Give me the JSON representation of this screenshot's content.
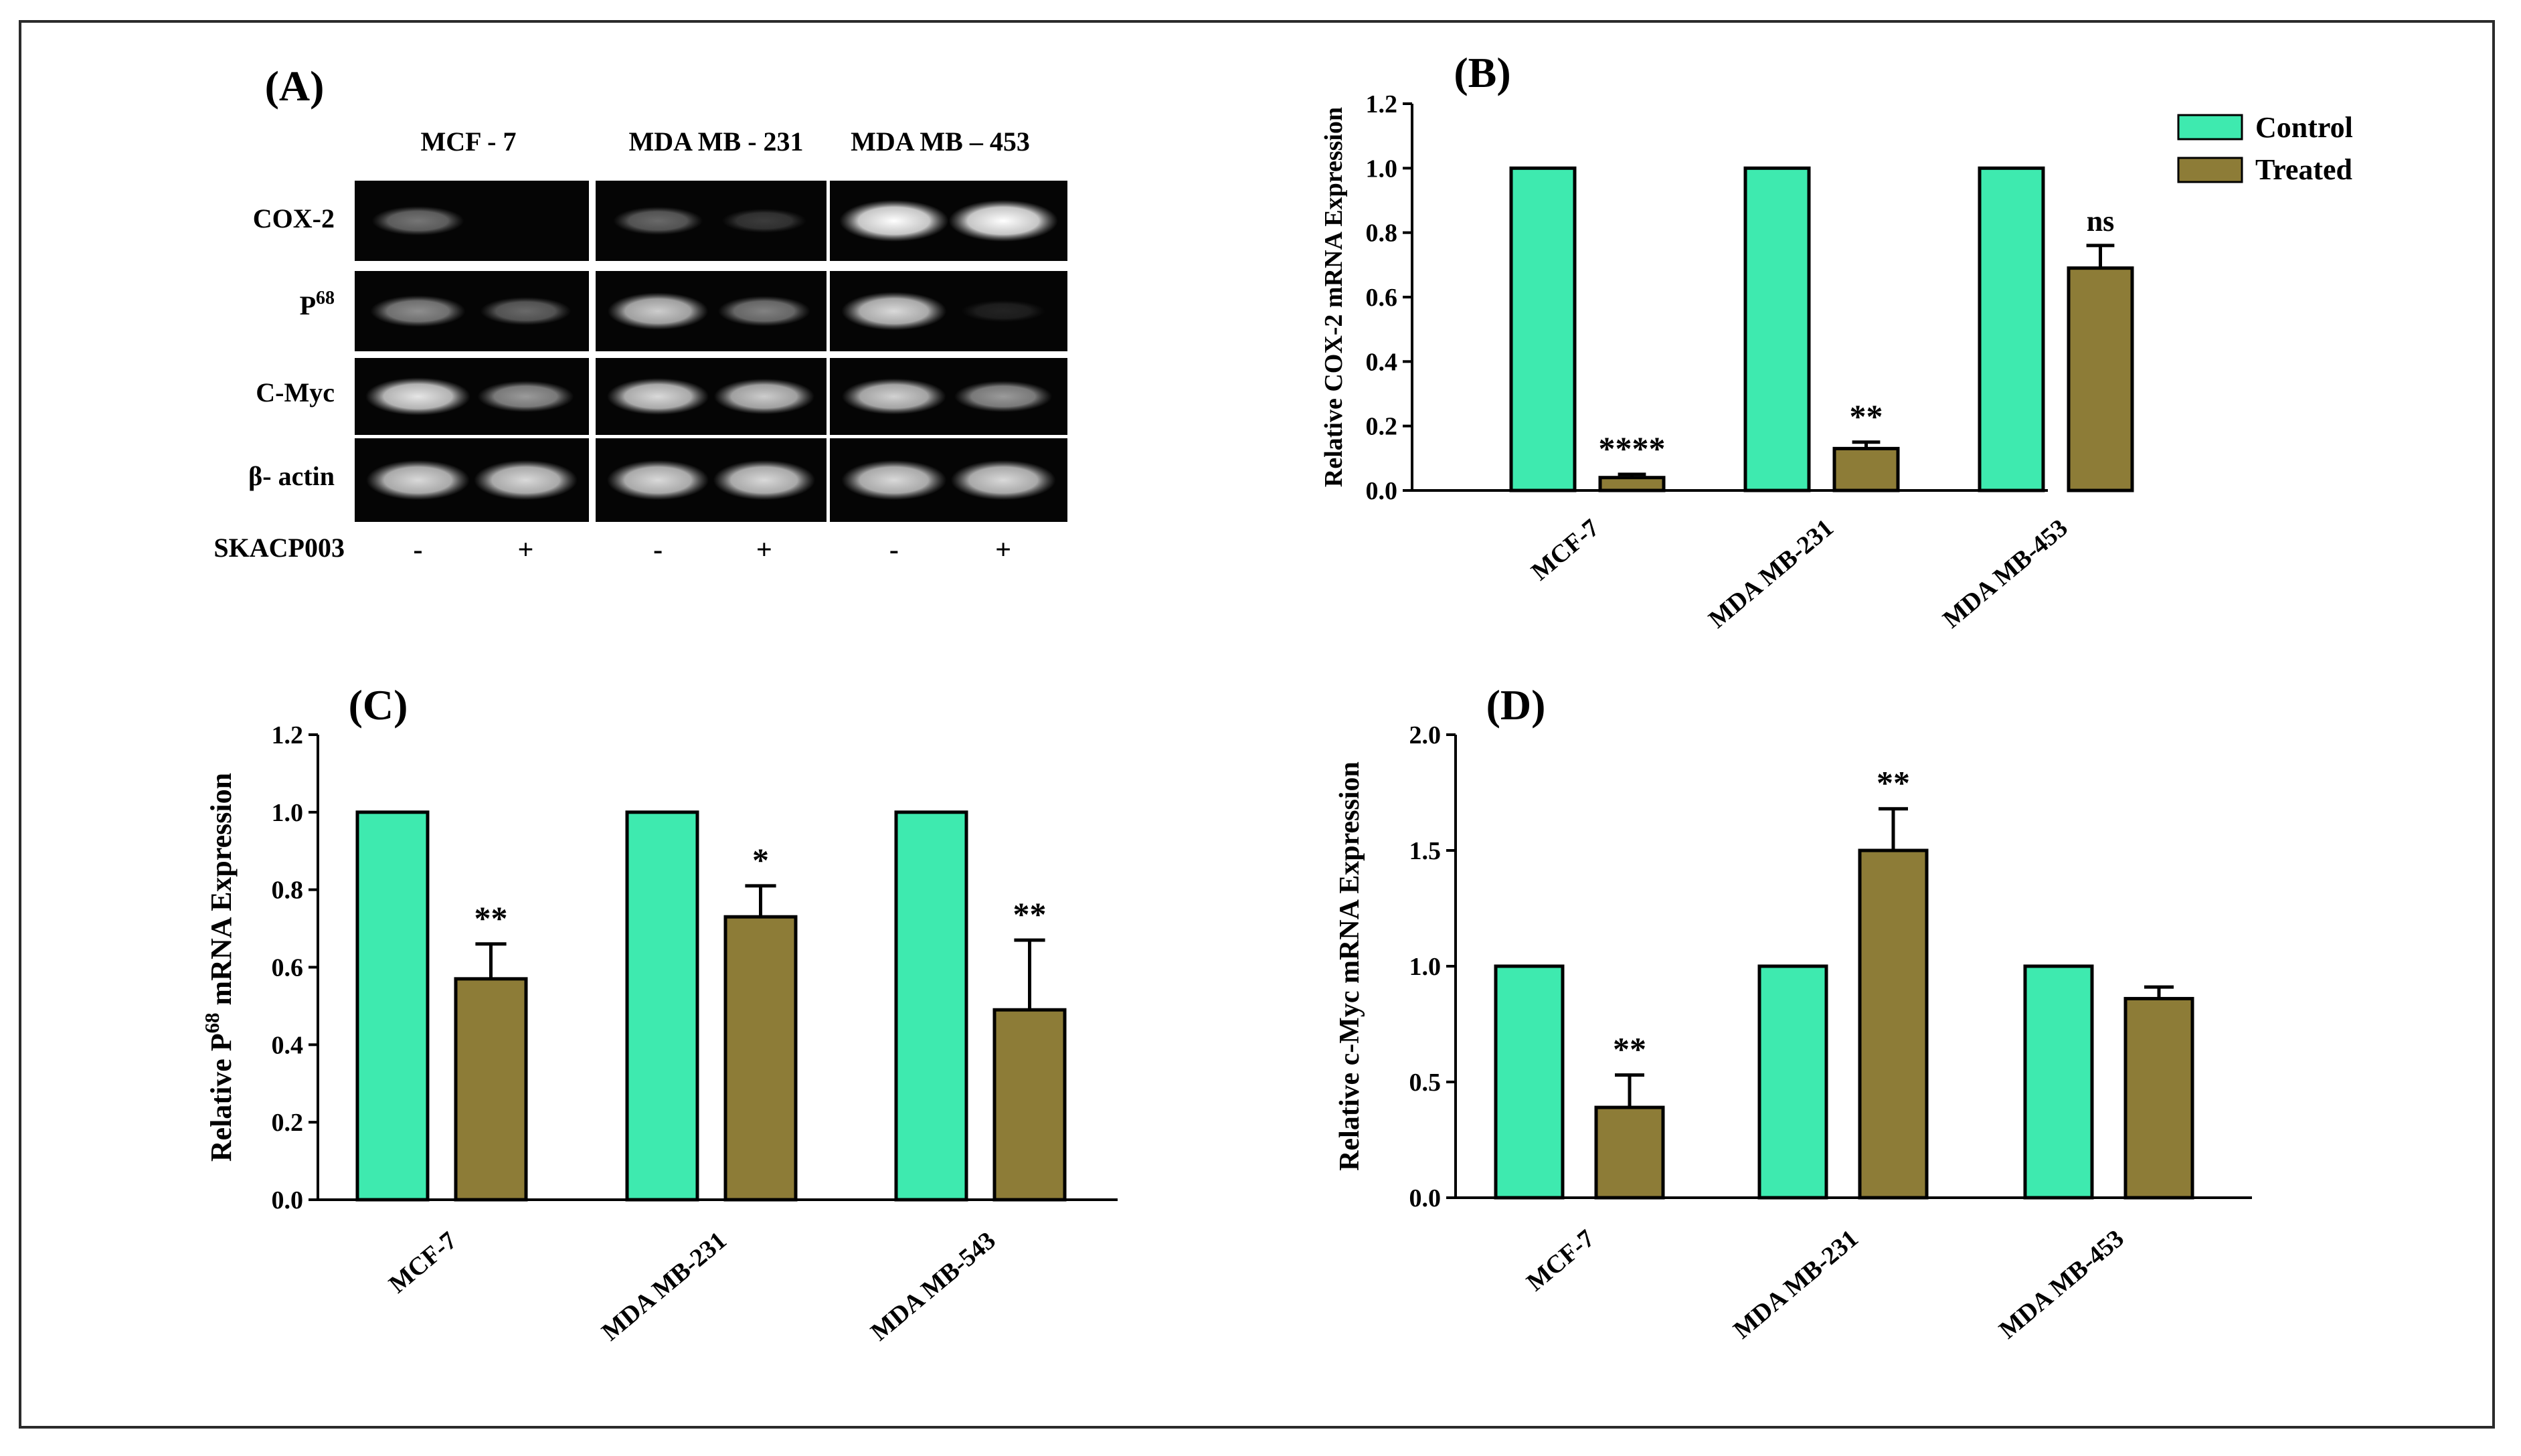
{
  "colors": {
    "control": "#3EEAAF",
    "treated": "#8D7C37",
    "band": "#ffffff",
    "gel": "#050505"
  },
  "panel_a": {
    "title": "(A)",
    "cell_lines": [
      "MCF - 7",
      "MDA MB - 231",
      "MDA MB – 453"
    ],
    "genes": [
      "COX-2",
      "P68",
      "C-Myc",
      "β- actin"
    ],
    "treatment_label": "SKACP003",
    "treatment_signs": [
      "-",
      "+",
      "-",
      "+",
      "-",
      "+"
    ],
    "band_intensity": [
      [
        0.45,
        0.0,
        0.4,
        0.22,
        1.0,
        1.0
      ],
      [
        0.55,
        0.4,
        0.8,
        0.5,
        0.85,
        0.12
      ],
      [
        0.9,
        0.6,
        0.85,
        0.8,
        0.82,
        0.6
      ],
      [
        0.85,
        0.85,
        0.85,
        0.85,
        0.85,
        0.85
      ]
    ]
  },
  "legend": {
    "control": "Control",
    "treated": "Treated"
  },
  "chart_data": [
    {
      "id": "B",
      "type": "bar",
      "title": "(B)",
      "categories": [
        "MCF-7",
        "MDA MB-231",
        "MDA MB-453"
      ],
      "series": [
        {
          "name": "Control",
          "values": [
            1.0,
            1.0,
            1.0
          ],
          "errors": [
            0,
            0,
            0
          ]
        },
        {
          "name": "Treated",
          "values": [
            0.04,
            0.13,
            0.69
          ],
          "errors": [
            0.01,
            0.02,
            0.07
          ]
        }
      ],
      "significance": [
        "****",
        "**",
        "ns"
      ],
      "ylabel": "Relative COX-2 mRNA Expression",
      "ylim": [
        0,
        1.2
      ],
      "yticks": [
        0.0,
        0.2,
        0.4,
        0.6,
        0.8,
        1.0,
        1.2
      ],
      "tick_decimals": 1,
      "legend": "top-right"
    },
    {
      "id": "C",
      "type": "bar",
      "title": "(C)",
      "categories": [
        "MCF-7",
        "MDA MB-231",
        "MDA MB-543"
      ],
      "series": [
        {
          "name": "Control",
          "values": [
            1.0,
            1.0,
            1.0
          ],
          "errors": [
            0,
            0,
            0
          ]
        },
        {
          "name": "Treated",
          "values": [
            0.57,
            0.73,
            0.49
          ],
          "errors": [
            0.09,
            0.08,
            0.18
          ]
        }
      ],
      "significance": [
        "**",
        "*",
        "**"
      ],
      "ylabel_prefix": "Relative P",
      "ylabel_sup": "68",
      "ylabel_suffix": " mRNA Expression",
      "ylim": [
        0,
        1.2
      ],
      "yticks": [
        0.0,
        0.2,
        0.4,
        0.6,
        0.8,
        1.0,
        1.2
      ],
      "tick_decimals": 1
    },
    {
      "id": "D",
      "type": "bar",
      "title": "(D)",
      "categories": [
        "MCF-7",
        "MDA MB-231",
        "MDA MB-453"
      ],
      "series": [
        {
          "name": "Control",
          "values": [
            1.0,
            1.0,
            1.0
          ],
          "errors": [
            0,
            0,
            0
          ]
        },
        {
          "name": "Treated",
          "values": [
            0.39,
            1.5,
            0.86
          ],
          "errors": [
            0.14,
            0.18,
            0.05
          ]
        }
      ],
      "significance": [
        "**",
        "**",
        ""
      ],
      "ylabel": "Relative c-Myc mRNA Expression",
      "ylim": [
        0,
        2.0
      ],
      "yticks": [
        0.0,
        0.5,
        1.0,
        1.5,
        2.0
      ],
      "tick_decimals": 1
    }
  ]
}
